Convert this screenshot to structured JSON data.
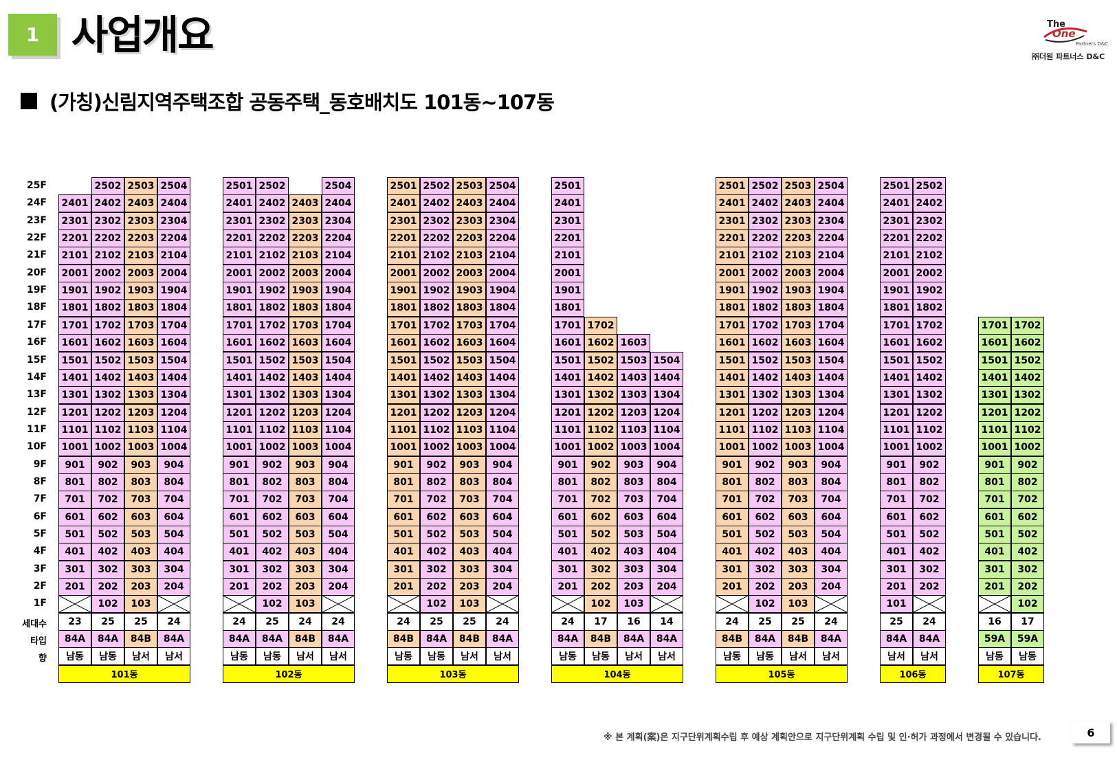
{
  "header": {
    "section_number": "1",
    "section_title": "사업개요"
  },
  "logo": {
    "the": "The",
    "one": "One",
    "partners": "Partners D&C",
    "korean": "㈜더원 파트너스 D&C"
  },
  "subtitle": "(가칭)신림지역주택조합 공동주택_동호배치도 101동~107동",
  "row_labels": {
    "households": "세대수",
    "type": "타입",
    "orientation": "향"
  },
  "floors": [
    "25F",
    "24F",
    "23F",
    "22F",
    "21F",
    "20F",
    "19F",
    "18F",
    "17F",
    "16F",
    "15F",
    "14F",
    "13F",
    "12F",
    "11F",
    "10F",
    "9F",
    "8F",
    "7F",
    "6F",
    "5F",
    "4F",
    "3F",
    "2F",
    "1F"
  ],
  "colors": {
    "pink": "#f7c8f7",
    "orange": "#fbd5ad",
    "green": "#c9f29c",
    "name_bar": "#ffff00",
    "section_badge": "#8dc63f"
  },
  "buildings": [
    {
      "name": "101동",
      "line_colors": [
        "pink",
        "pink",
        "orange",
        "pink"
      ],
      "floor_range": [
        [
          2,
          24
        ],
        [
          1,
          25
        ],
        [
          1,
          25
        ],
        [
          2,
          25
        ]
      ],
      "first_floor": [
        "x",
        "102",
        "103",
        "x"
      ],
      "households": [
        "23",
        "25",
        "25",
        "24"
      ],
      "types": [
        "84A",
        "84A",
        "84B",
        "84A"
      ],
      "orientation": [
        "남동",
        "남동",
        "남서",
        "남서"
      ]
    },
    {
      "name": "102동",
      "line_colors": [
        "pink",
        "pink",
        "orange",
        "pink"
      ],
      "floor_range": [
        [
          2,
          25
        ],
        [
          1,
          25
        ],
        [
          1,
          24
        ],
        [
          2,
          25
        ]
      ],
      "first_floor": [
        "x",
        "102",
        "103",
        "x"
      ],
      "households": [
        "24",
        "25",
        "24",
        "24"
      ],
      "types": [
        "84A",
        "84A",
        "84B",
        "84A"
      ],
      "orientation": [
        "남동",
        "남동",
        "남서",
        "남서"
      ]
    },
    {
      "name": "103동",
      "line_colors": [
        "orange",
        "pink",
        "orange",
        "pink"
      ],
      "floor_range": [
        [
          2,
          25
        ],
        [
          1,
          25
        ],
        [
          1,
          25
        ],
        [
          2,
          25
        ]
      ],
      "first_floor": [
        "x",
        "102",
        "103",
        "x"
      ],
      "households": [
        "24",
        "25",
        "25",
        "24"
      ],
      "types": [
        "84B",
        "84A",
        "84B",
        "84A"
      ],
      "orientation": [
        "남동",
        "남동",
        "남서",
        "남서"
      ]
    },
    {
      "name": "104동",
      "line_colors": [
        "pink",
        "orange",
        "pink",
        "pink"
      ],
      "floor_range": [
        [
          2,
          25
        ],
        [
          1,
          17
        ],
        [
          1,
          16
        ],
        [
          2,
          15
        ]
      ],
      "first_floor": [
        "x",
        "102",
        "103",
        "x"
      ],
      "households": [
        "24",
        "17",
        "16",
        "14"
      ],
      "types": [
        "84A",
        "84B",
        "84A",
        "84A"
      ],
      "orientation": [
        "남동",
        "남동",
        "남서",
        "남서"
      ]
    },
    {
      "name": "105동",
      "line_colors": [
        "orange",
        "pink",
        "orange",
        "pink"
      ],
      "floor_range": [
        [
          2,
          25
        ],
        [
          1,
          25
        ],
        [
          1,
          25
        ],
        [
          2,
          25
        ]
      ],
      "first_floor": [
        "x",
        "102",
        "103",
        "x"
      ],
      "households": [
        "24",
        "25",
        "25",
        "24"
      ],
      "types": [
        "84B",
        "84A",
        "84B",
        "84A"
      ],
      "orientation": [
        "남동",
        "남동",
        "남서",
        "남서"
      ]
    },
    {
      "name": "106동",
      "line_colors": [
        "pink",
        "pink"
      ],
      "floor_range": [
        [
          1,
          25
        ],
        [
          2,
          25
        ]
      ],
      "first_floor": [
        "101",
        "x"
      ],
      "households": [
        "25",
        "24"
      ],
      "types": [
        "84A",
        "84A"
      ],
      "orientation": [
        "남서",
        "남서"
      ]
    },
    {
      "name": "107동",
      "line_colors": [
        "green",
        "green"
      ],
      "floor_range": [
        [
          2,
          17
        ],
        [
          1,
          17
        ]
      ],
      "first_floor": [
        "x",
        "102"
      ],
      "households": [
        "16",
        "17"
      ],
      "types": [
        "59A",
        "59A"
      ],
      "orientation": [
        "남동",
        "남동"
      ]
    }
  ],
  "footnote": "※ 본 계획(案)은 지구단위계획수립 후 예상 계획안으로 지구단위계획 수립 및 인·허가 과정에서 변경될 수 있습니다.",
  "page_number": "6"
}
